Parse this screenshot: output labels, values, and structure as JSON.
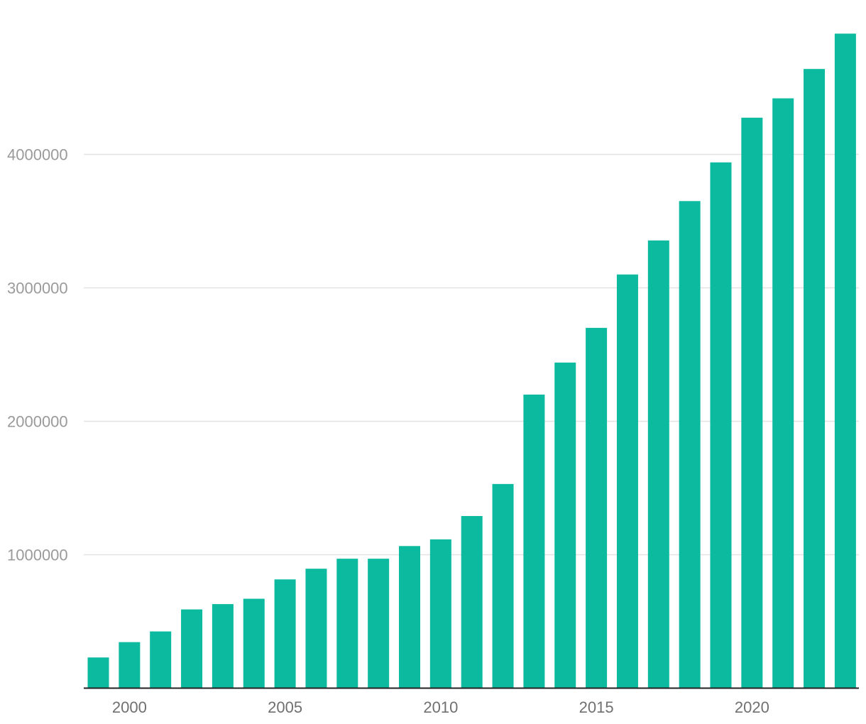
{
  "chart_data": {
    "type": "bar",
    "title": "",
    "xlabel": "",
    "ylabel": "",
    "categories": [
      1999,
      2000,
      2001,
      2002,
      2003,
      2004,
      2005,
      2006,
      2007,
      2008,
      2009,
      2010,
      2011,
      2012,
      2013,
      2014,
      2015,
      2016,
      2017,
      2018,
      2019,
      2020,
      2021,
      2022,
      2023
    ],
    "values": [
      230000,
      345000,
      425000,
      590000,
      630000,
      670000,
      815000,
      895000,
      970000,
      970000,
      1065000,
      1115000,
      1290000,
      1530000,
      2200000,
      2440000,
      2700000,
      3100000,
      3355000,
      3650000,
      3940000,
      4275000,
      4420000,
      4640000,
      4905000
    ],
    "ylim": [
      0,
      4905000
    ],
    "y_ticks": [
      1000000,
      2000000,
      3000000,
      4000000
    ],
    "y_tick_labels": [
      "1000000",
      "2000000",
      "3000000",
      "4000000"
    ],
    "x_tick_labels": [
      "2000",
      "2005",
      "2010",
      "2015",
      "2020"
    ],
    "grid": true,
    "legend": "none",
    "bar_color": "#0cbb9f",
    "grid_color": "#e3e3e3",
    "axis_color": "#222222"
  }
}
